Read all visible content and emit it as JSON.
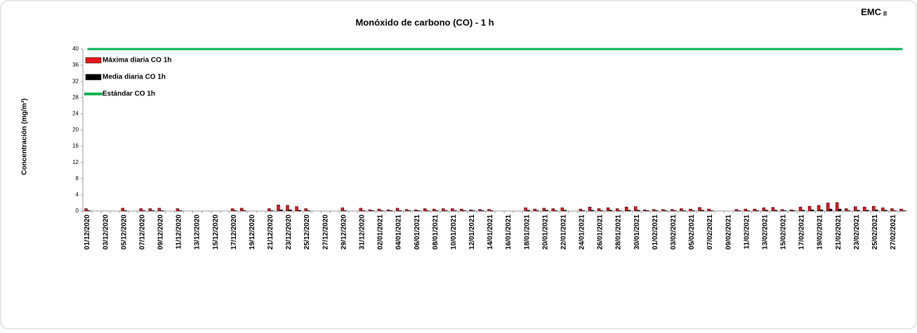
{
  "chart_data": {
    "type": "bar",
    "title": "Monóxido de carbono (CO) - 1 h",
    "badge": "EMC",
    "badge_suffix": "II",
    "y_label": "Concentración (mg/m³)",
    "categories": [
      "01/12/2020",
      null,
      "03/12/2020",
      null,
      "05/12/2020",
      null,
      "07/12/2020",
      null,
      "09/12/2020",
      null,
      "11/12/2020",
      null,
      "13/12/2020",
      null,
      "15/12/2020",
      null,
      "17/12/2020",
      null,
      "19/12/2020",
      null,
      "21/12/2020",
      null,
      "23/12/2020",
      null,
      "25/12/2020",
      null,
      "27/12/2020",
      null,
      "29/12/2020",
      null,
      "31/12/2020",
      null,
      "02/01/2021",
      null,
      "04/01/2021",
      null,
      "06/01/2021",
      null,
      "08/01/2021",
      null,
      "10/01/2021",
      null,
      "12/01/2021",
      null,
      "14/01/2021",
      null,
      "16/01/2021",
      null,
      "18/01/2021",
      null,
      "20/01/2021",
      null,
      "22/01/2021",
      null,
      "24/01/2021",
      null,
      "26/01/2021",
      null,
      "28/01/2021",
      null,
      "30/01/2021",
      null,
      "01/02/2021",
      null,
      "03/02/2021",
      null,
      "05/02/2021",
      null,
      "07/02/2021",
      null,
      "09/02/2021",
      null,
      "11/02/2021",
      null,
      "13/02/2021",
      null,
      "15/02/2021",
      null,
      "17/02/2021",
      null,
      "19/02/2021",
      null,
      "21/02/2021",
      null,
      "23/02/2021",
      null,
      "25/02/2021",
      null,
      "27/02/2021",
      null
    ],
    "series": [
      {
        "name": "Máxima diaria CO 1h",
        "color": "#e8141b",
        "kind": "bar",
        "values": [
          0.6,
          null,
          null,
          null,
          0.7,
          null,
          0.6,
          0.6,
          0.7,
          null,
          0.6,
          null,
          null,
          null,
          null,
          null,
          0.6,
          0.7,
          null,
          null,
          0.6,
          1.5,
          1.4,
          1.1,
          0.6,
          null,
          null,
          null,
          0.8,
          null,
          0.7,
          0.3,
          0.5,
          0.3,
          0.7,
          0.4,
          0.3,
          0.6,
          0.5,
          0.6,
          0.6,
          0.5,
          0.3,
          0.4,
          0.4,
          null,
          null,
          null,
          0.8,
          0.5,
          0.7,
          0.6,
          0.8,
          null,
          0.5,
          1.0,
          0.6,
          0.8,
          0.6,
          1.0,
          1.1,
          0.3,
          0.4,
          0.4,
          0.4,
          0.6,
          0.5,
          0.9,
          0.5,
          null,
          null,
          0.4,
          0.5,
          0.5,
          0.8,
          0.9,
          0.4,
          0.3,
          1.0,
          1.2,
          1.4,
          2.0,
          2.1,
          0.6,
          1.1,
          1.0,
          1.2,
          0.8,
          0.6,
          0.5
        ]
      },
      {
        "name": "Media diaria CO 1h",
        "color": "#000000",
        "kind": "bar",
        "values": [
          0.1,
          null,
          null,
          null,
          0.1,
          null,
          0.1,
          0.1,
          0.1,
          null,
          0.1,
          null,
          null,
          null,
          null,
          null,
          0.1,
          0.1,
          null,
          null,
          0.1,
          0.3,
          0.3,
          0.2,
          0.1,
          null,
          null,
          null,
          0.1,
          null,
          0.1,
          0.1,
          0.1,
          0.1,
          0.1,
          0.1,
          0.1,
          0.1,
          0.1,
          0.1,
          0.1,
          0.1,
          0.1,
          0.1,
          0.1,
          null,
          null,
          null,
          0.2,
          0.1,
          0.2,
          0.1,
          0.2,
          null,
          0.1,
          0.2,
          0.1,
          0.2,
          0.1,
          0.2,
          0.2,
          0.1,
          0.1,
          0.1,
          0.1,
          0.1,
          0.1,
          0.2,
          0.1,
          null,
          null,
          0.1,
          0.1,
          0.1,
          0.2,
          0.2,
          0.1,
          0.1,
          0.2,
          0.3,
          0.3,
          0.5,
          0.5,
          0.1,
          0.2,
          0.2,
          0.3,
          0.2,
          0.1,
          0.1
        ]
      },
      {
        "name": "Estándar CO 1h",
        "color": "#00b050",
        "kind": "line",
        "values": [
          40,
          40,
          40,
          40,
          40,
          40,
          40,
          40,
          40,
          40,
          40,
          40,
          40,
          40,
          40,
          40,
          40,
          40,
          40,
          40,
          40,
          40,
          40,
          40,
          40,
          40,
          40,
          40,
          40,
          40,
          40,
          40,
          40,
          40,
          40,
          40,
          40,
          40,
          40,
          40,
          40,
          40,
          40,
          40,
          40,
          40,
          40,
          40,
          40,
          40,
          40,
          40,
          40,
          40,
          40,
          40,
          40,
          40,
          40,
          40,
          40,
          40,
          40,
          40,
          40,
          40,
          40,
          40,
          40,
          40,
          40,
          40,
          40,
          40,
          40,
          40,
          40,
          40,
          40,
          40,
          40,
          40,
          40,
          40,
          40,
          40,
          40,
          40,
          40,
          40
        ]
      }
    ],
    "ylim": [
      0,
      40
    ],
    "yticks": [
      0,
      4,
      8,
      12,
      16,
      20,
      24,
      28,
      32,
      36,
      40
    ],
    "grid": false
  }
}
